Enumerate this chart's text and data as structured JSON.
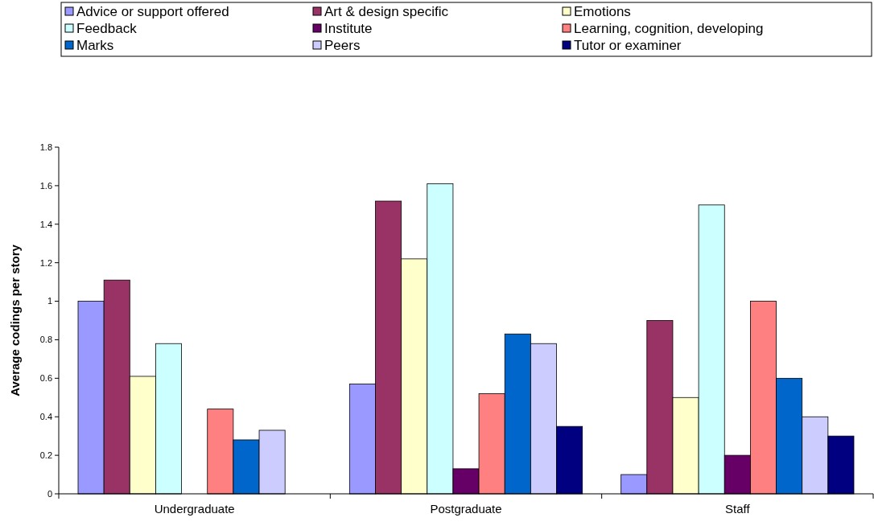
{
  "chart_data": {
    "type": "bar",
    "ylabel": "Average codings per story",
    "categories": [
      "Undergraduate",
      "Postgraduate",
      "Staff"
    ],
    "ylim": [
      0,
      1.8
    ],
    "yticks": [
      0,
      0.2,
      0.4,
      0.6,
      0.8,
      1,
      1.2,
      1.4,
      1.6,
      1.8
    ],
    "legend": "top",
    "grid": false,
    "series": [
      {
        "name": "Advice or support offered",
        "color": "#9999ff",
        "values": [
          1,
          0.57,
          0.1
        ]
      },
      {
        "name": "Art & design specific",
        "color": "#993366",
        "values": [
          1.11,
          1.52,
          0.9
        ]
      },
      {
        "name": "Emotions",
        "color": "#ffffcc",
        "values": [
          0.61,
          1.22,
          0.5
        ]
      },
      {
        "name": "Feedback",
        "color": "#ccffff",
        "values": [
          0.78,
          1.61,
          1.5
        ]
      },
      {
        "name": "Institute",
        "color": "#660066",
        "values": [
          null,
          0.13,
          0.2
        ]
      },
      {
        "name": "Learning, cognition, developing",
        "color": "#ff8080",
        "values": [
          0.44,
          0.52,
          1
        ]
      },
      {
        "name": "Marks",
        "color": "#0066cc",
        "values": [
          0.28,
          0.83,
          0.6
        ]
      },
      {
        "name": "Peers",
        "color": "#ccccff",
        "values": [
          0.33,
          0.78,
          0.4
        ]
      },
      {
        "name": "Tutor or examiner",
        "color": "#000080",
        "values": [
          null,
          0.35,
          0.3
        ]
      }
    ]
  }
}
